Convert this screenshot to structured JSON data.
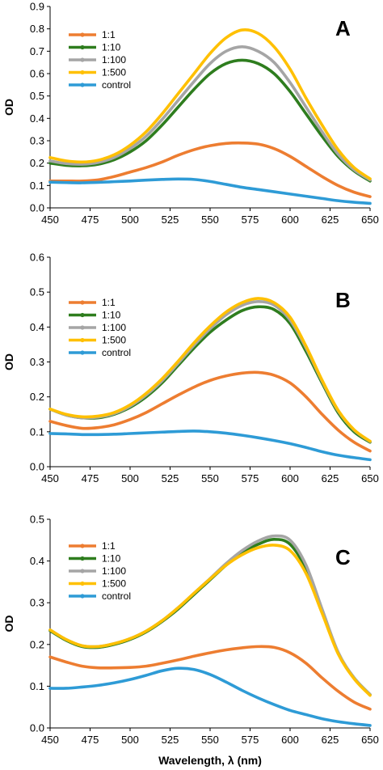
{
  "colors": {
    "1:1": "#ED7D31",
    "1:10": "#2E7D1E",
    "1:100": "#A5A5A5",
    "1:500": "#FFC000",
    "control": "#2E9BD6",
    "axis": "#000000"
  },
  "chart_data": [
    {
      "type": "line",
      "panel_label": "A",
      "title": "",
      "xlabel": "",
      "ylabel": "OD",
      "xlim": [
        450,
        650
      ],
      "ylim": [
        0,
        0.9
      ],
      "x_ticks": [
        450,
        475,
        500,
        525,
        550,
        575,
        600,
        625,
        650
      ],
      "y_ticks": [
        0,
        0.1,
        0.2,
        0.3,
        0.4,
        0.5,
        0.6,
        0.7,
        0.8,
        0.9
      ],
      "y_tick_labels": [
        "0.0",
        "0.1",
        "0.2",
        "0.3",
        "0.4",
        "0.5",
        "0.6",
        "0.7",
        "0.8",
        "0.9"
      ],
      "legend_position": "top-left",
      "grid": false,
      "x": [
        450,
        460,
        470,
        480,
        490,
        500,
        510,
        520,
        530,
        540,
        550,
        560,
        570,
        580,
        590,
        600,
        610,
        620,
        630,
        640,
        650
      ],
      "series": [
        {
          "name": "1:1",
          "values": [
            0.12,
            0.12,
            0.12,
            0.125,
            0.14,
            0.16,
            0.18,
            0.205,
            0.235,
            0.26,
            0.278,
            0.288,
            0.29,
            0.285,
            0.265,
            0.23,
            0.185,
            0.14,
            0.1,
            0.07,
            0.05
          ]
        },
        {
          "name": "1:10",
          "values": [
            0.2,
            0.19,
            0.188,
            0.195,
            0.215,
            0.25,
            0.3,
            0.37,
            0.45,
            0.53,
            0.6,
            0.645,
            0.66,
            0.645,
            0.6,
            0.52,
            0.42,
            0.32,
            0.23,
            0.165,
            0.12
          ]
        },
        {
          "name": "1:100",
          "values": [
            0.21,
            0.198,
            0.195,
            0.203,
            0.225,
            0.265,
            0.32,
            0.395,
            0.48,
            0.565,
            0.645,
            0.7,
            0.72,
            0.7,
            0.65,
            0.56,
            0.45,
            0.34,
            0.24,
            0.17,
            0.125
          ]
        },
        {
          "name": "1:500",
          "values": [
            0.225,
            0.21,
            0.205,
            0.213,
            0.237,
            0.28,
            0.34,
            0.42,
            0.51,
            0.6,
            0.69,
            0.76,
            0.795,
            0.78,
            0.72,
            0.62,
            0.49,
            0.37,
            0.26,
            0.18,
            0.13
          ]
        },
        {
          "name": "control",
          "values": [
            0.115,
            0.113,
            0.112,
            0.114,
            0.117,
            0.12,
            0.124,
            0.127,
            0.129,
            0.127,
            0.118,
            0.105,
            0.092,
            0.082,
            0.072,
            0.062,
            0.052,
            0.042,
            0.032,
            0.025,
            0.02
          ]
        }
      ]
    },
    {
      "type": "line",
      "panel_label": "B",
      "title": "",
      "xlabel": "",
      "ylabel": "OD",
      "xlim": [
        450,
        650
      ],
      "ylim": [
        0,
        0.6
      ],
      "x_ticks": [
        450,
        475,
        500,
        525,
        550,
        575,
        600,
        625,
        650
      ],
      "y_ticks": [
        0,
        0.1,
        0.2,
        0.3,
        0.4,
        0.5,
        0.6
      ],
      "y_tick_labels": [
        "0.0",
        "0.1",
        "0.2",
        "0.3",
        "0.4",
        "0.5",
        "0.6"
      ],
      "legend_position": "middle-left",
      "grid": false,
      "x": [
        450,
        460,
        470,
        480,
        490,
        500,
        510,
        520,
        530,
        540,
        550,
        560,
        570,
        580,
        590,
        600,
        610,
        620,
        630,
        640,
        650
      ],
      "series": [
        {
          "name": "1:1",
          "values": [
            0.13,
            0.118,
            0.11,
            0.112,
            0.12,
            0.135,
            0.155,
            0.18,
            0.205,
            0.228,
            0.247,
            0.26,
            0.268,
            0.27,
            0.262,
            0.24,
            0.2,
            0.15,
            0.105,
            0.07,
            0.045
          ]
        },
        {
          "name": "1:10",
          "values": [
            0.165,
            0.148,
            0.14,
            0.14,
            0.15,
            0.17,
            0.2,
            0.24,
            0.29,
            0.34,
            0.385,
            0.42,
            0.447,
            0.458,
            0.45,
            0.41,
            0.33,
            0.24,
            0.155,
            0.1,
            0.07
          ]
        },
        {
          "name": "1:100",
          "values": [
            0.165,
            0.148,
            0.14,
            0.142,
            0.152,
            0.173,
            0.205,
            0.246,
            0.296,
            0.348,
            0.395,
            0.435,
            0.462,
            0.473,
            0.463,
            0.42,
            0.34,
            0.245,
            0.16,
            0.105,
            0.072
          ]
        },
        {
          "name": "1:500",
          "values": [
            0.165,
            0.15,
            0.143,
            0.145,
            0.155,
            0.177,
            0.21,
            0.252,
            0.302,
            0.355,
            0.403,
            0.443,
            0.47,
            0.482,
            0.47,
            0.428,
            0.345,
            0.248,
            0.162,
            0.106,
            0.073
          ]
        },
        {
          "name": "control",
          "values": [
            0.095,
            0.094,
            0.092,
            0.092,
            0.093,
            0.095,
            0.097,
            0.099,
            0.101,
            0.102,
            0.1,
            0.096,
            0.09,
            0.083,
            0.075,
            0.066,
            0.055,
            0.043,
            0.033,
            0.026,
            0.02
          ]
        }
      ]
    },
    {
      "type": "line",
      "panel_label": "C",
      "title": "",
      "xlabel": "Wavelength, λ (nm)",
      "ylabel": "OD",
      "xlim": [
        450,
        650
      ],
      "ylim": [
        0,
        0.5
      ],
      "x_ticks": [
        450,
        475,
        500,
        525,
        550,
        575,
        600,
        625,
        650
      ],
      "y_ticks": [
        0,
        0.1,
        0.2,
        0.3,
        0.4,
        0.5
      ],
      "y_tick_labels": [
        "0.0",
        "0.1",
        "0.2",
        "0.3",
        "0.4",
        "0.5"
      ],
      "legend_position": "top-left",
      "grid": false,
      "x": [
        450,
        460,
        470,
        480,
        490,
        500,
        510,
        520,
        530,
        540,
        550,
        560,
        570,
        580,
        590,
        600,
        610,
        620,
        630,
        640,
        650
      ],
      "series": [
        {
          "name": "1:1",
          "values": [
            0.17,
            0.158,
            0.148,
            0.144,
            0.144,
            0.145,
            0.148,
            0.155,
            0.163,
            0.172,
            0.18,
            0.187,
            0.192,
            0.195,
            0.193,
            0.18,
            0.155,
            0.12,
            0.088,
            0.062,
            0.045
          ]
        },
        {
          "name": "1:10",
          "values": [
            0.233,
            0.21,
            0.195,
            0.193,
            0.2,
            0.212,
            0.23,
            0.255,
            0.285,
            0.32,
            0.355,
            0.39,
            0.42,
            0.44,
            0.452,
            0.44,
            0.38,
            0.28,
            0.18,
            0.12,
            0.08
          ]
        },
        {
          "name": "1:100",
          "values": [
            0.235,
            0.212,
            0.197,
            0.195,
            0.202,
            0.214,
            0.232,
            0.257,
            0.288,
            0.323,
            0.358,
            0.394,
            0.425,
            0.448,
            0.46,
            0.45,
            0.39,
            0.285,
            0.182,
            0.12,
            0.08
          ]
        },
        {
          "name": "1:500",
          "values": [
            0.235,
            0.212,
            0.197,
            0.195,
            0.202,
            0.214,
            0.232,
            0.257,
            0.288,
            0.323,
            0.357,
            0.39,
            0.415,
            0.432,
            0.438,
            0.425,
            0.37,
            0.275,
            0.178,
            0.118,
            0.078
          ]
        },
        {
          "name": "control",
          "values": [
            0.095,
            0.095,
            0.098,
            0.102,
            0.108,
            0.116,
            0.126,
            0.137,
            0.143,
            0.14,
            0.128,
            0.11,
            0.09,
            0.072,
            0.056,
            0.042,
            0.032,
            0.022,
            0.015,
            0.01,
            0.006
          ]
        }
      ]
    }
  ]
}
